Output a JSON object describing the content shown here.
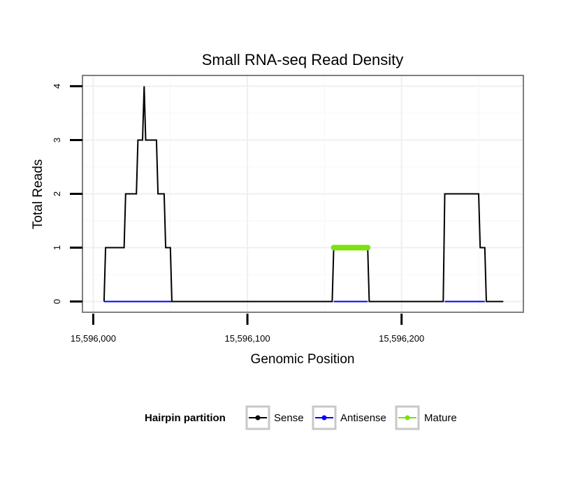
{
  "chart_data": {
    "type": "line",
    "title": "Small RNA-seq Read Density",
    "xlabel": "Genomic Position",
    "ylabel": "Total Reads",
    "xlim": [
      15595993,
      15596279
    ],
    "ylim": [
      -0.2,
      4.2
    ],
    "x_ticks": [
      {
        "value": 15596000,
        "label": "15,596,000"
      },
      {
        "value": 15596100,
        "label": "15,596,100"
      },
      {
        "value": 15596200,
        "label": "15,596,200"
      }
    ],
    "y_ticks": [
      {
        "value": 0,
        "label": "0"
      },
      {
        "value": 1,
        "label": "1"
      },
      {
        "value": 2,
        "label": "2"
      },
      {
        "value": 3,
        "label": "3"
      },
      {
        "value": 4,
        "label": "4"
      }
    ],
    "grid": true,
    "legend": {
      "title": "Hairpin partition",
      "position": "bottom",
      "entries": [
        {
          "label": "Sense",
          "color": "#000000"
        },
        {
          "label": "Antisense",
          "color": "#0000ff"
        },
        {
          "label": "Mature",
          "color": "#7fe010"
        }
      ]
    },
    "series": [
      {
        "name": "Sense",
        "color": "#000000",
        "points": [
          [
            15596007,
            0
          ],
          [
            15596008,
            1
          ],
          [
            15596020,
            1
          ],
          [
            15596021,
            2
          ],
          [
            15596028,
            2
          ],
          [
            15596029,
            3
          ],
          [
            15596032,
            3
          ],
          [
            15596033,
            4
          ],
          [
            15596034,
            3
          ],
          [
            15596041,
            3
          ],
          [
            15596042,
            2
          ],
          [
            15596046,
            2
          ],
          [
            15596047,
            1
          ],
          [
            15596050,
            1
          ],
          [
            15596051,
            0
          ],
          [
            15596155,
            0
          ],
          [
            15596156,
            1
          ],
          [
            15596178,
            1
          ],
          [
            15596179,
            0
          ],
          [
            15596227,
            0
          ],
          [
            15596228,
            2
          ],
          [
            15596250,
            2
          ],
          [
            15596251,
            1
          ],
          [
            15596254,
            1
          ],
          [
            15596255,
            0
          ],
          [
            15596266,
            0
          ]
        ]
      },
      {
        "name": "Antisense",
        "color": "#0000ff",
        "segments": [
          [
            [
              15596007,
              0
            ],
            [
              15596051,
              0
            ]
          ],
          [
            [
              15596156,
              0
            ],
            [
              15596178,
              0
            ]
          ],
          [
            [
              15596228,
              0
            ],
            [
              15596254,
              0
            ]
          ]
        ]
      },
      {
        "name": "Mature",
        "color": "#7fe010",
        "segments": [
          [
            [
              15596156,
              1
            ],
            [
              15596178,
              1
            ]
          ]
        ]
      }
    ]
  }
}
